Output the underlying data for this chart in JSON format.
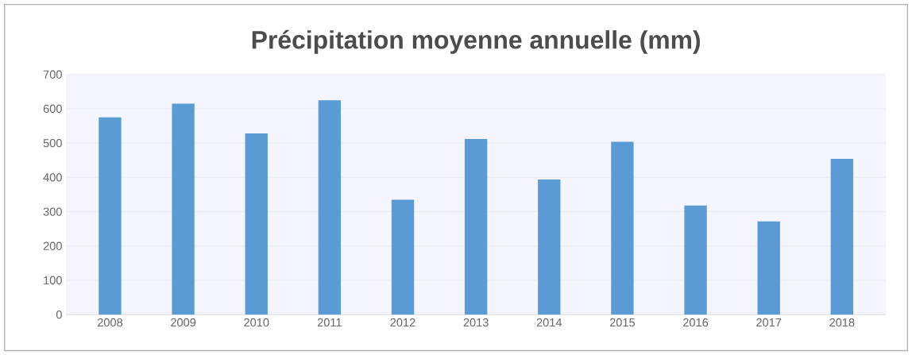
{
  "chart_data": {
    "type": "bar",
    "title": "Précipitation moyenne annuelle (mm)",
    "categories": [
      "2008",
      "2009",
      "2010",
      "2011",
      "2012",
      "2013",
      "2014",
      "2015",
      "2016",
      "2017",
      "2018"
    ],
    "values": [
      575,
      615,
      528,
      625,
      335,
      512,
      394,
      504,
      318,
      272,
      454
    ],
    "color": "#5b9bd5",
    "ylim": [
      0,
      700
    ],
    "yticks": [
      0,
      100,
      200,
      300,
      400,
      500,
      600,
      700
    ],
    "grid": "y"
  }
}
